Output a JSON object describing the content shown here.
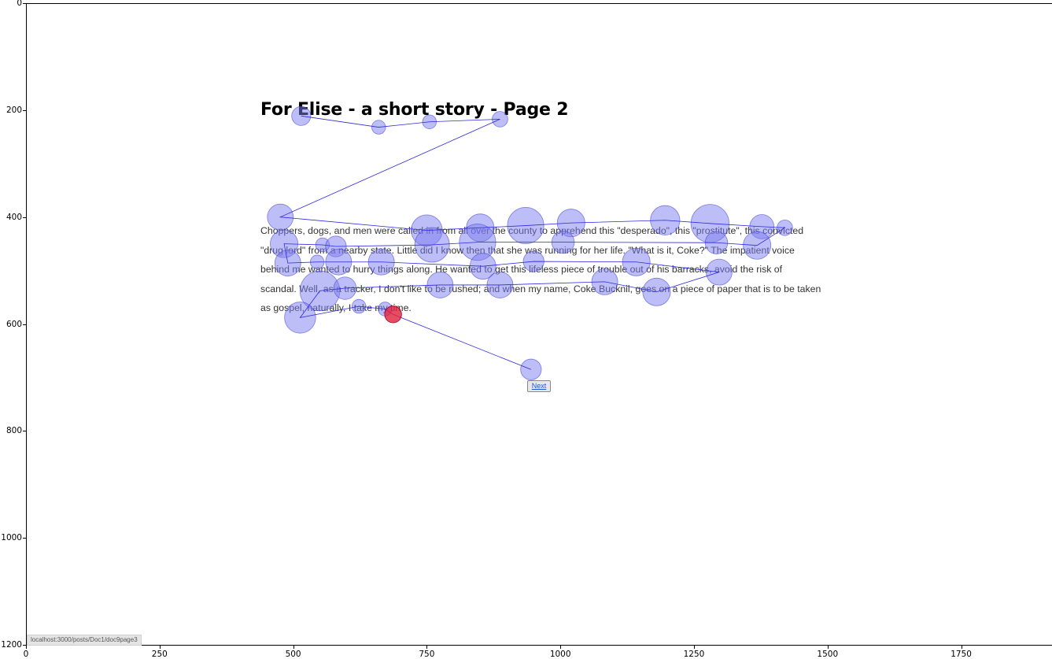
{
  "page": {
    "title": "For Elise - a short story - Page 2",
    "story_lines": [
      "Choppers, dogs, and men were called in from all over the county to apprehend this \"desperado\", this \"prostitute\", this convicted",
      "\"drug lord\" from a nearby state. Little did I know then that she was running for her life. \"What is it, Coke?\" The impatient voice",
      "behind me wanted to hurry things along. He wanted to get this lifeless piece of trouble out of his barracks, avoid the risk of",
      "scandal. Well, as a tracker, I don't like to be rushed; and when my name, Coke Bucknil, goes on a piece of paper that is to be taken",
      "as gospel, naturally, I take my time."
    ],
    "next_label": "Next",
    "status_url": "localhost:3000/posts/Doc1/doc9page3"
  },
  "axes": {
    "x_ticks": [
      "0",
      "250",
      "500",
      "750",
      "1000",
      "1250",
      "1500",
      "1750"
    ],
    "y_ticks": [
      "0",
      "200",
      "400",
      "600",
      "800",
      "1000",
      "1200"
    ]
  },
  "colors": {
    "fixation_fill": "#7b7bf0",
    "fixation_stroke": "#3b3bd6",
    "saccade_line": "#2a2ae0",
    "current_fixation": "#e0203a"
  },
  "chart_data": {
    "type": "scatter",
    "xlim": [
      0,
      1920
    ],
    "ylim": [
      1200,
      0
    ],
    "fixations": [
      {
        "x": 515,
        "y": 211,
        "r": 1.1
      },
      {
        "x": 660,
        "y": 232,
        "r": 0.8
      },
      {
        "x": 755,
        "y": 222,
        "r": 0.8
      },
      {
        "x": 887,
        "y": 217,
        "r": 0.9
      },
      {
        "x": 476,
        "y": 400,
        "r": 1.5
      },
      {
        "x": 750,
        "y": 425,
        "r": 1.8
      },
      {
        "x": 850,
        "y": 420,
        "r": 1.6
      },
      {
        "x": 935,
        "y": 416,
        "r": 2.1
      },
      {
        "x": 1020,
        "y": 411,
        "r": 1.6
      },
      {
        "x": 1196,
        "y": 406,
        "r": 1.7
      },
      {
        "x": 1280,
        "y": 412,
        "r": 2.2
      },
      {
        "x": 1377,
        "y": 418,
        "r": 1.4
      },
      {
        "x": 1420,
        "y": 420,
        "r": 0.9
      },
      {
        "x": 483,
        "y": 450,
        "r": 1.6
      },
      {
        "x": 555,
        "y": 452,
        "r": 0.8
      },
      {
        "x": 580,
        "y": 455,
        "r": 1.2
      },
      {
        "x": 760,
        "y": 452,
        "r": 2.0
      },
      {
        "x": 845,
        "y": 447,
        "r": 2.1
      },
      {
        "x": 1005,
        "y": 447,
        "r": 1.3
      },
      {
        "x": 1292,
        "y": 448,
        "r": 1.3
      },
      {
        "x": 1368,
        "y": 453,
        "r": 1.6
      },
      {
        "x": 490,
        "y": 486,
        "r": 1.5
      },
      {
        "x": 545,
        "y": 484,
        "r": 0.8
      },
      {
        "x": 585,
        "y": 484,
        "r": 1.5
      },
      {
        "x": 665,
        "y": 484,
        "r": 1.5
      },
      {
        "x": 855,
        "y": 492,
        "r": 1.5
      },
      {
        "x": 950,
        "y": 483,
        "r": 1.2
      },
      {
        "x": 1142,
        "y": 484,
        "r": 1.6
      },
      {
        "x": 1297,
        "y": 503,
        "r": 1.5
      },
      {
        "x": 550,
        "y": 538,
        "r": 2.3
      },
      {
        "x": 597,
        "y": 533,
        "r": 1.3
      },
      {
        "x": 775,
        "y": 527,
        "r": 1.5
      },
      {
        "x": 887,
        "y": 527,
        "r": 1.5
      },
      {
        "x": 1083,
        "y": 521,
        "r": 1.5
      },
      {
        "x": 1180,
        "y": 540,
        "r": 1.6
      },
      {
        "x": 513,
        "y": 588,
        "r": 1.8
      },
      {
        "x": 623,
        "y": 567,
        "r": 0.8
      },
      {
        "x": 672,
        "y": 572,
        "r": 0.8
      },
      {
        "x": 945,
        "y": 685,
        "r": 1.2
      }
    ],
    "current_fixation": {
      "x": 687,
      "y": 582,
      "r": 1.3
    },
    "scanpath": [
      [
        515,
        211
      ],
      [
        660,
        232
      ],
      [
        755,
        222
      ],
      [
        887,
        217
      ],
      [
        476,
        400
      ],
      [
        750,
        425
      ],
      [
        850,
        420
      ],
      [
        935,
        416
      ],
      [
        1020,
        411
      ],
      [
        1196,
        406
      ],
      [
        1280,
        412
      ],
      [
        1377,
        418
      ],
      [
        1420,
        420
      ],
      [
        1368,
        453
      ],
      [
        1292,
        448
      ],
      [
        1005,
        447
      ],
      [
        845,
        447
      ],
      [
        760,
        452
      ],
      [
        580,
        455
      ],
      [
        555,
        452
      ],
      [
        483,
        450
      ],
      [
        490,
        486
      ],
      [
        545,
        484
      ],
      [
        585,
        484
      ],
      [
        665,
        484
      ],
      [
        855,
        492
      ],
      [
        950,
        483
      ],
      [
        1142,
        484
      ],
      [
        1297,
        503
      ],
      [
        1180,
        540
      ],
      [
        1083,
        521
      ],
      [
        887,
        527
      ],
      [
        775,
        527
      ],
      [
        597,
        533
      ],
      [
        550,
        538
      ],
      [
        513,
        588
      ],
      [
        623,
        567
      ],
      [
        672,
        572
      ],
      [
        687,
        582
      ],
      [
        945,
        685
      ],
      [
        687,
        582
      ]
    ]
  }
}
